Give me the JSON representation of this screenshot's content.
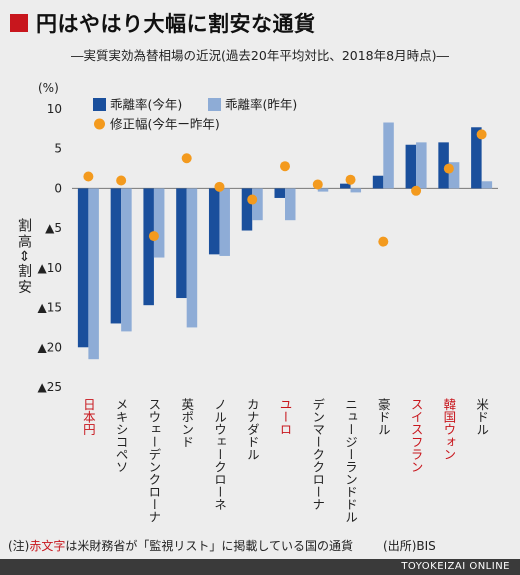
{
  "header": {
    "title": "円はやはり大幅に割安な通貨",
    "subtitle": "―実質実効為替相場の近況(過去20年平均対比、2018年8月時点)―"
  },
  "footnote": {
    "prefix": "(注)",
    "red_text": "赤文字",
    "rest": "は米財務省が「監視リスト」に掲載している国の通貨",
    "source": "(出所)BIS"
  },
  "brand": "TOYOKEIZAI ONLINE",
  "colors": {
    "this_year": "#1a4f9c",
    "last_year": "#8eacd6",
    "change": "#f39a1e",
    "watchlist_red": "#c8161d",
    "title_mark": "#c8161d"
  },
  "chart_data": {
    "type": "bar",
    "unit_label": "(%)",
    "ylabel": "割高⇔割安",
    "ylim": [
      -25,
      10
    ],
    "yticks": [
      10,
      5,
      0,
      -5,
      -10,
      -15,
      -20,
      -25
    ],
    "ytick_labels": [
      "10",
      "5",
      "0",
      "▲5",
      "▲10",
      "▲15",
      "▲20",
      "▲25"
    ],
    "grid": false,
    "legend_position": "top",
    "categories": [
      "日本円",
      "メキシコペソ",
      "スウェーデンクローナ",
      "英ポンド",
      "ノルウェークローネ",
      "カナダドル",
      "ユーロ",
      "デンマーククローナ",
      "ニュージーランドドル",
      "豪ドル",
      "スイスフラン",
      "韓国ウォン",
      "米ドル"
    ],
    "watchlist": [
      true,
      false,
      false,
      false,
      false,
      false,
      true,
      false,
      false,
      false,
      true,
      true,
      false
    ],
    "series": [
      {
        "name": "乖離率(今年)",
        "kind": "bar",
        "values": [
          -20.0,
          -17.0,
          -14.7,
          -13.8,
          -8.3,
          -5.3,
          -1.2,
          0.0,
          0.6,
          1.6,
          5.5,
          5.8,
          7.7
        ]
      },
      {
        "name": "乖離率(昨年)",
        "kind": "bar",
        "values": [
          -21.5,
          -18.0,
          -8.7,
          -17.5,
          -8.5,
          -4.0,
          -4.0,
          -0.4,
          -0.5,
          8.3,
          5.8,
          3.3,
          0.9
        ]
      },
      {
        "name": "修正幅(今年ー昨年)",
        "kind": "dot",
        "values": [
          1.5,
          1.0,
          -6.0,
          3.8,
          0.2,
          -1.4,
          2.8,
          0.5,
          1.1,
          -6.7,
          -0.3,
          2.5,
          6.8
        ]
      }
    ]
  }
}
